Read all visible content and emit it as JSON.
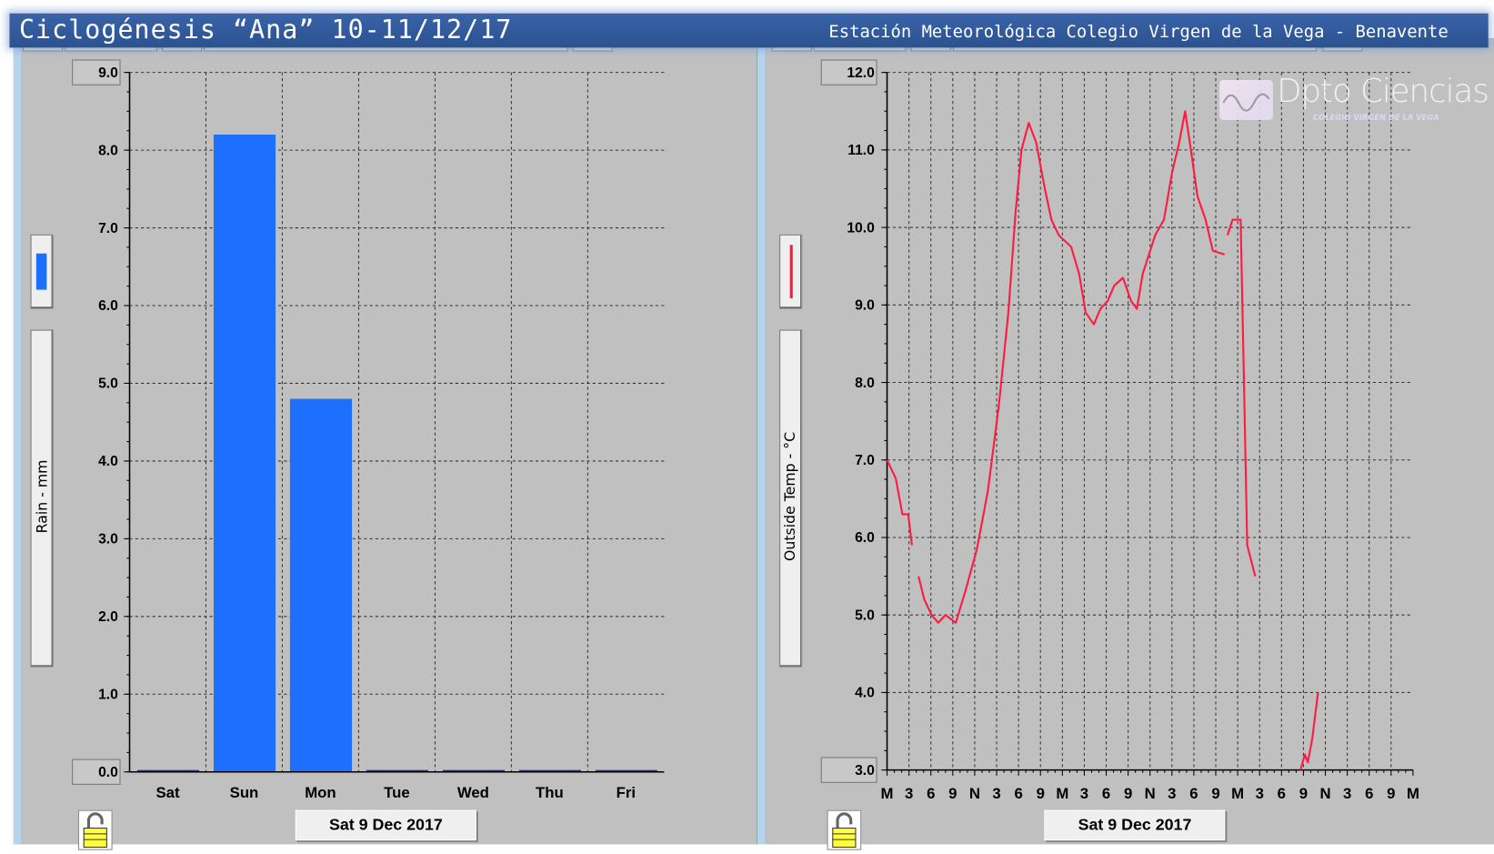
{
  "header": {
    "title": "Ciclogénesis “Ana” 10-11/12/17",
    "station": "Estación Meteorológica Colegio Virgen de la Vega - Benavente"
  },
  "watermark": {
    "text": "Dpto Ciencias",
    "subtext": "COLEGIO VIRGEN DE LA VEGA"
  },
  "colors": {
    "rain": "#1f6fff",
    "temp": "#ff1a40",
    "background": "#c0c0c0",
    "header": "#2f5597"
  },
  "rain_panel": {
    "date_button": "Sat 9 Dec 2017",
    "axis_label": "Rain - mm",
    "lock_icon": "padlock-open-icon"
  },
  "temp_panel": {
    "date_button": "Sat 9 Dec 2017",
    "axis_label": "Outside Temp - °C",
    "lock_icon": "padlock-open-icon"
  },
  "chart_data": [
    {
      "type": "bar",
      "ylabel": "Rain - mm",
      "categories": [
        "Sat",
        "Sun",
        "Mon",
        "Tue",
        "Wed",
        "Thu",
        "Fri"
      ],
      "values": [
        0,
        8.2,
        4.8,
        0,
        0,
        0,
        0
      ],
      "ylim": [
        0,
        9
      ],
      "yticks": [
        "0.0",
        "1.0",
        "2.0",
        "3.0",
        "4.0",
        "5.0",
        "6.0",
        "7.0",
        "8.0",
        "9.0"
      ],
      "grid": true
    },
    {
      "type": "line",
      "ylabel": "Outside Temp - °C",
      "ylim": [
        3,
        12
      ],
      "xlim_hours": [
        0,
        72
      ],
      "xticks": [
        "M",
        "3",
        "6",
        "9",
        "N",
        "3",
        "6",
        "9",
        "M",
        "3",
        "6",
        "9",
        "N",
        "3",
        "6",
        "9",
        "M",
        "3",
        "6",
        "9",
        "N",
        "3",
        "6",
        "9",
        "M"
      ],
      "yticks": [
        "3.0",
        "4.0",
        "5.0",
        "6.0",
        "7.0",
        "8.0",
        "9.0",
        "10.0",
        "11.0",
        "12.0"
      ],
      "grid": true,
      "series": [
        {
          "x_hours": [
            0,
            1.2,
            2.1,
            2.9,
            3.4,
            null,
            4.3,
            5.1,
            6.1,
            7,
            8,
            9.4,
            10.7,
            12.3,
            13.8,
            15.3,
            16.6,
            17.6,
            18.4,
            19.4,
            20.4,
            21.6,
            22.5,
            23.5,
            25.2,
            26.3,
            27.2,
            28.3,
            29.2,
            30.2,
            31.1,
            32.3,
            33.4,
            34.2,
            35,
            36.7,
            37.9,
            39,
            40,
            40.8,
            41.6,
            42.5,
            43.6,
            44.6,
            46.2,
            null,
            46.6,
            47.3,
            48.4,
            48.8,
            49.3,
            50.4,
            null,
            56.6,
            57.2,
            57.6,
            58.2,
            59
          ],
          "values": [
            7.0,
            6.76,
            6.3,
            6.3,
            5.9,
            null,
            5.5,
            5.2,
            5.0,
            4.9,
            5.0,
            4.9,
            5.3,
            5.85,
            6.6,
            7.7,
            8.9,
            10.2,
            11.0,
            11.35,
            11.1,
            10.5,
            10.1,
            9.9,
            9.75,
            9.4,
            8.9,
            8.75,
            8.95,
            9.05,
            9.25,
            9.35,
            9.05,
            8.95,
            9.4,
            9.9,
            10.1,
            10.7,
            11.1,
            11.5,
            11.0,
            10.4,
            10.1,
            9.7,
            9.65,
            null,
            9.9,
            10.1,
            10.1,
            8.3,
            5.9,
            5.5,
            null,
            3.0,
            3.2,
            3.1,
            3.4,
            4.0
          ]
        }
      ]
    }
  ]
}
